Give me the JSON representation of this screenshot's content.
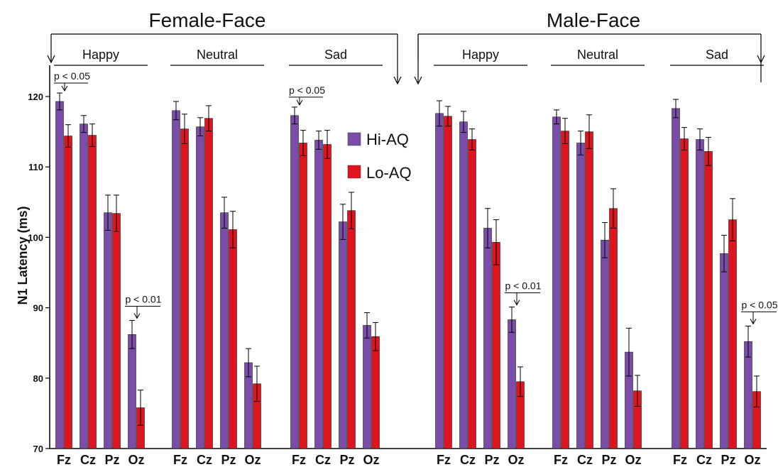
{
  "chart_data": {
    "type": "bar",
    "ylabel": "N1 Latency (ms)",
    "ylim": [
      70,
      125
    ],
    "yticks": [
      70,
      80,
      90,
      100,
      110,
      120
    ],
    "electrodes": [
      "Fz",
      "Cz",
      "Pz",
      "Oz"
    ],
    "face_groups": [
      {
        "label": "Female-Face",
        "emotions": [
          "Happy",
          "Neutral",
          "Sad"
        ]
      },
      {
        "label": "Male-Face",
        "emotions": [
          "Happy",
          "Neutral",
          "Sad"
        ]
      }
    ],
    "legend": [
      {
        "name": "Hi-AQ",
        "color": "#7a4ea8"
      },
      {
        "name": "Lo-AQ",
        "color": "#e0141e"
      }
    ],
    "series": [
      {
        "name": "Hi-AQ",
        "color": "#7a4ea8",
        "values": [
          119.3,
          116.1,
          103.5,
          86.2,
          118.0,
          115.7,
          103.5,
          82.2,
          117.3,
          113.8,
          102.2,
          87.5,
          117.6,
          116.4,
          101.3,
          88.3,
          117.1,
          113.4,
          99.6,
          83.7,
          118.3,
          113.9,
          97.7,
          85.2
        ],
        "errors": [
          1.2,
          1.2,
          2.5,
          2.0,
          1.3,
          1.3,
          2.2,
          2.0,
          1.2,
          1.3,
          2.5,
          1.8,
          1.8,
          1.5,
          2.8,
          1.8,
          1.0,
          1.7,
          2.5,
          3.4,
          1.3,
          1.5,
          2.6,
          2.2
        ]
      },
      {
        "name": "Lo-AQ",
        "color": "#e0141e",
        "values": [
          114.4,
          114.5,
          103.4,
          75.8,
          115.4,
          116.9,
          101.1,
          79.2,
          113.4,
          113.2,
          103.8,
          85.9,
          117.2,
          113.9,
          99.3,
          79.5,
          115.1,
          115.0,
          104.1,
          78.2,
          114.0,
          112.2,
          102.5,
          78.1
        ],
        "errors": [
          1.6,
          1.6,
          2.6,
          2.5,
          2.1,
          1.8,
          2.6,
          2.5,
          1.8,
          2.0,
          2.6,
          2.0,
          1.4,
          1.5,
          3.2,
          2.1,
          1.8,
          2.4,
          2.8,
          2.2,
          1.6,
          2.0,
          3.0,
          2.2
        ]
      }
    ],
    "annotations": [
      {
        "text": "p < 0.05",
        "face": 0,
        "emotion": 0,
        "electrode": "Fz"
      },
      {
        "text": "p < 0.01",
        "face": 0,
        "emotion": 0,
        "electrode": "Oz"
      },
      {
        "text": "p < 0.05",
        "face": 0,
        "emotion": 2,
        "electrode": "Fz"
      },
      {
        "text": "p < 0.01",
        "face": 1,
        "emotion": 0,
        "electrode": "Oz"
      },
      {
        "text": "p < 0.05",
        "face": 1,
        "emotion": 2,
        "electrode": "Oz"
      }
    ]
  }
}
